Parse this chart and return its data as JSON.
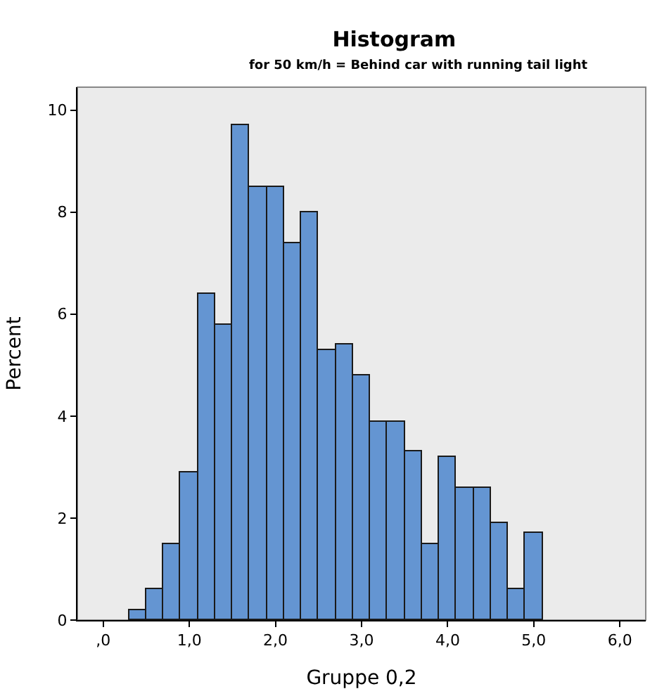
{
  "chart_data": {
    "type": "histogram",
    "title": "Histogram",
    "subtitle": "for 50 km/h = Behind car with running tail light",
    "xlabel": "Gruppe 0,2",
    "ylabel": "Percent",
    "bins": [
      0.3,
      0.5,
      0.7,
      0.9,
      1.1,
      1.3,
      1.5,
      1.7,
      1.9,
      2.1,
      2.3,
      2.5,
      2.7,
      2.9,
      3.1,
      3.3,
      3.5,
      3.7,
      3.9,
      4.1,
      4.3,
      4.5,
      4.7,
      4.9,
      5.1
    ],
    "values": [
      0.2,
      0.6,
      1.5,
      2.9,
      6.4,
      5.8,
      9.7,
      8.5,
      8.5,
      7.4,
      8.0,
      5.3,
      5.4,
      4.8,
      3.9,
      3.9,
      3.3,
      1.5,
      3.2,
      2.6,
      2.6,
      1.9,
      0.6,
      1.7
    ],
    "color": "#6495d2",
    "xlim": [
      -0.3,
      6.3
    ],
    "ylim": [
      0,
      10.45
    ],
    "xticks": [
      {
        "value": 0,
        "label": ",0"
      },
      {
        "value": 1,
        "label": "1,0"
      },
      {
        "value": 2,
        "label": "2,0"
      },
      {
        "value": 3,
        "label": "3,0"
      },
      {
        "value": 4,
        "label": "4,0"
      },
      {
        "value": 5,
        "label": "5,0"
      },
      {
        "value": 6,
        "label": "6,0"
      }
    ],
    "yticks": [
      0,
      2,
      4,
      6,
      8,
      10
    ],
    "grid": false
  }
}
